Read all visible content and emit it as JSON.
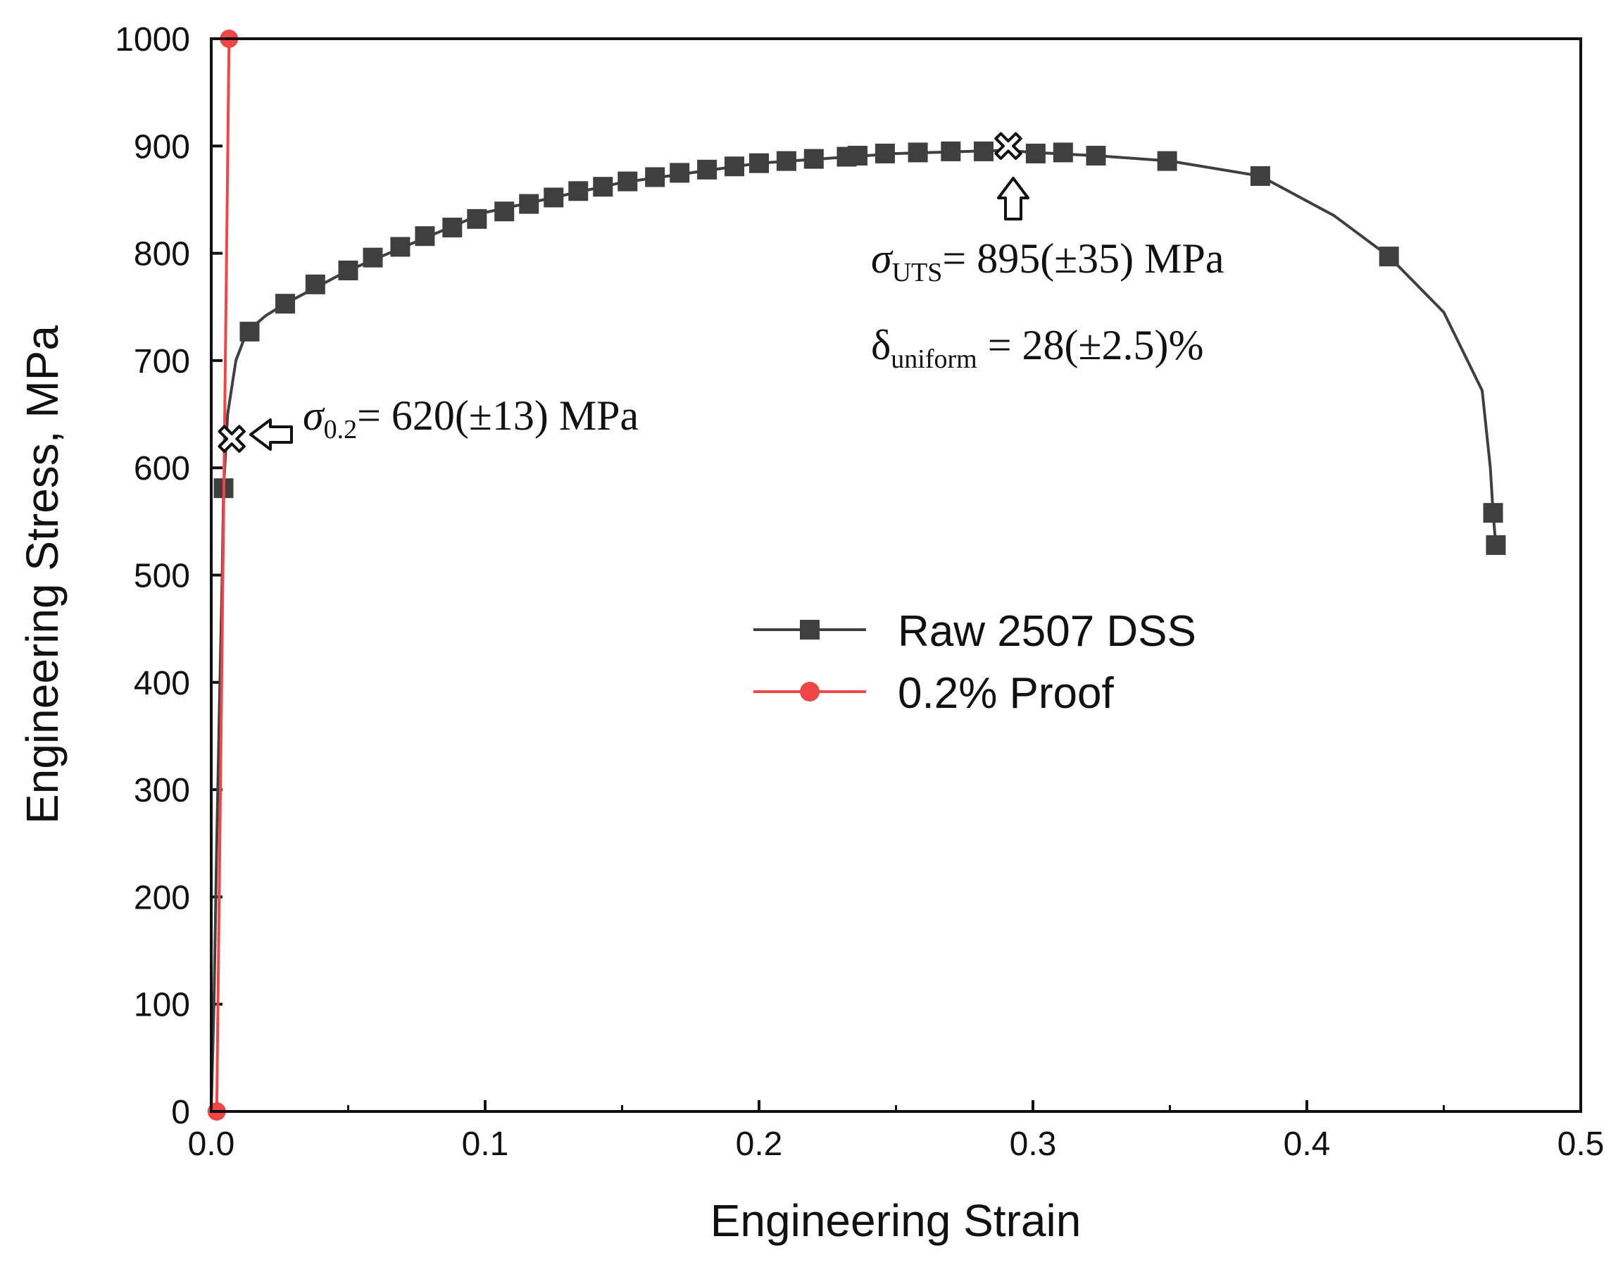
{
  "chart_data": {
    "type": "line",
    "title": "",
    "xlabel": "Engineering Strain",
    "ylabel": "Engineering Stress, MPa",
    "xlim": [
      0.0,
      0.5
    ],
    "ylim": [
      0,
      1000
    ],
    "x_ticks": [
      "0.0",
      "0.1",
      "0.2",
      "0.3",
      "0.4",
      "0.5"
    ],
    "y_ticks": [
      "0",
      "100",
      "200",
      "300",
      "400",
      "500",
      "600",
      "700",
      "800",
      "900",
      "1000"
    ],
    "x_tick_values": [
      0.0,
      0.1,
      0.2,
      0.3,
      0.4,
      0.5
    ],
    "y_tick_values": [
      0,
      100,
      200,
      300,
      400,
      500,
      600,
      700,
      800,
      900,
      1000
    ],
    "x_minor_values": [
      0.05,
      0.15,
      0.25,
      0.35,
      0.45
    ],
    "series": [
      {
        "name": "Raw 2507 DSS",
        "color": "#3f3f3f",
        "marker": "square",
        "curve": [
          [
            0.0,
            0
          ],
          [
            0.001,
            100
          ],
          [
            0.002,
            250
          ],
          [
            0.003,
            380
          ],
          [
            0.004,
            500
          ],
          [
            0.0045,
            580
          ],
          [
            0.006,
            650
          ],
          [
            0.009,
            700
          ],
          [
            0.013,
            727
          ],
          [
            0.02,
            742
          ],
          [
            0.027,
            753
          ],
          [
            0.05,
            784
          ],
          [
            0.1,
            838
          ],
          [
            0.15,
            866
          ],
          [
            0.2,
            884
          ],
          [
            0.25,
            893
          ],
          [
            0.29,
            896
          ],
          [
            0.3,
            894
          ],
          [
            0.323,
            891
          ],
          [
            0.35,
            886
          ],
          [
            0.383,
            872
          ],
          [
            0.41,
            835
          ],
          [
            0.43,
            797
          ],
          [
            0.45,
            745
          ],
          [
            0.464,
            672
          ],
          [
            0.467,
            600
          ],
          [
            0.468,
            558
          ],
          [
            0.469,
            528
          ]
        ],
        "markers": [
          [
            0.0045,
            581
          ],
          [
            0.014,
            727
          ],
          [
            0.027,
            753
          ],
          [
            0.038,
            771
          ],
          [
            0.05,
            784
          ],
          [
            0.059,
            796
          ],
          [
            0.069,
            806
          ],
          [
            0.078,
            816
          ],
          [
            0.088,
            824
          ],
          [
            0.097,
            832
          ],
          [
            0.107,
            839
          ],
          [
            0.116,
            846
          ],
          [
            0.125,
            852
          ],
          [
            0.134,
            858
          ],
          [
            0.143,
            862
          ],
          [
            0.152,
            867
          ],
          [
            0.162,
            871
          ],
          [
            0.171,
            875
          ],
          [
            0.181,
            878
          ],
          [
            0.191,
            881
          ],
          [
            0.2,
            884
          ],
          [
            0.21,
            886
          ],
          [
            0.22,
            888
          ],
          [
            0.232,
            890
          ],
          [
            0.236,
            891
          ],
          [
            0.246,
            893
          ],
          [
            0.258,
            894
          ],
          [
            0.27,
            895
          ],
          [
            0.282,
            895
          ],
          [
            0.301,
            893
          ],
          [
            0.311,
            894
          ],
          [
            0.323,
            891
          ],
          [
            0.349,
            886
          ],
          [
            0.383,
            872
          ],
          [
            0.43,
            797
          ],
          [
            0.468,
            558
          ],
          [
            0.469,
            528
          ]
        ]
      },
      {
        "name": "0.2% Proof",
        "color": "#f04646",
        "marker": "circle",
        "curve": [
          [
            0.002,
            0
          ],
          [
            0.0065,
            1000
          ]
        ],
        "markers": [
          [
            0.002,
            0
          ],
          [
            0.0065,
            1000
          ]
        ]
      }
    ],
    "key_points": [
      {
        "name": "yield",
        "x": 0.0075,
        "y": 627
      },
      {
        "name": "uts",
        "x": 0.291,
        "y": 900
      }
    ],
    "annotations": {
      "yield_symbol": "σ",
      "yield_sub": "0.2",
      "yield_text": "= 620(±13) MPa",
      "uts_symbol": "σ",
      "uts_sub": "UTS",
      "uts_text": "= 895(±35) MPa",
      "uniform_symbol": "δ",
      "uniform_sub": "uniform",
      "uniform_text": " = 28(±2.5)%"
    },
    "legend": {
      "position": "center-right",
      "entries": [
        "Raw 2507 DSS",
        "0.2% Proof"
      ]
    }
  }
}
